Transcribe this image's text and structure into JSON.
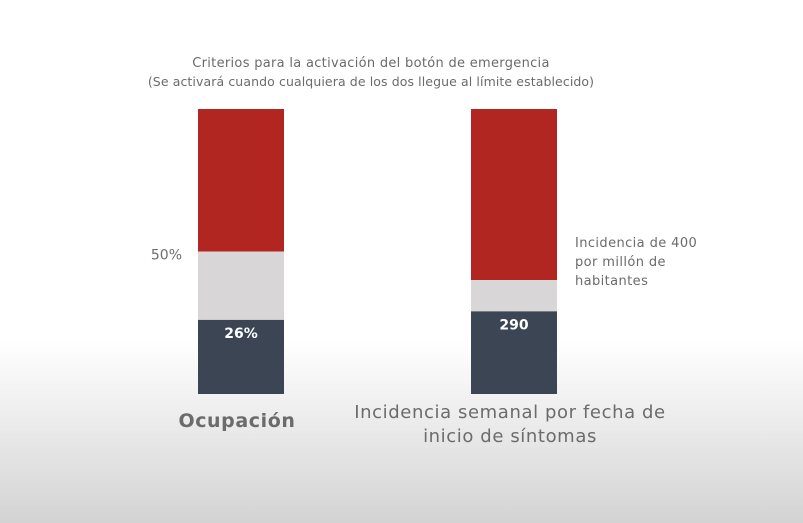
{
  "chart_data": {
    "type": "bar",
    "title": "Criterios para la activación del botón de emergencia",
    "subtitle": "(Se activará cuando cualquiera de los dos llegue al límite establecido)",
    "categories": [
      "Ocupación",
      "Incidencia semanal por fecha de inicio de síntomas"
    ],
    "bars": [
      {
        "name": "Ocupación",
        "max": 100,
        "value": 26,
        "value_label": "26%",
        "threshold": 50,
        "threshold_label": "50%"
      },
      {
        "name": "Incidencia semanal por fecha de inicio de síntomas",
        "max": 1000,
        "value": 290,
        "value_label": "290",
        "threshold": 400,
        "threshold_label": "Incidencia de 400 por millón de habitantes"
      }
    ],
    "colors": {
      "current": "#3b4554",
      "to_threshold": "#d8d6d6",
      "above_threshold": "#b12621"
    }
  }
}
